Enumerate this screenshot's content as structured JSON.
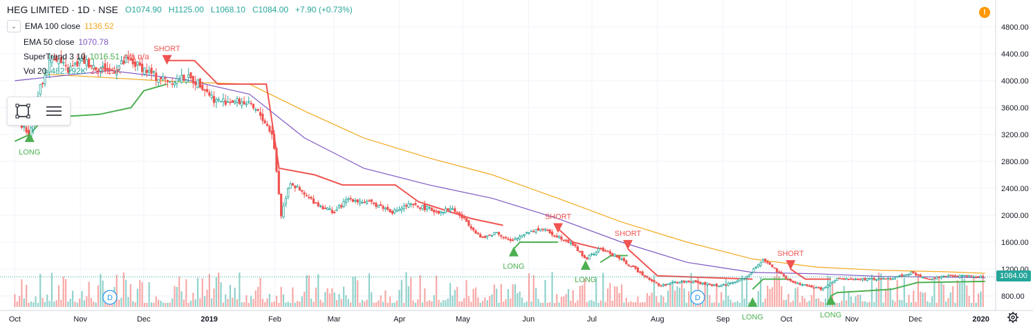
{
  "header": {
    "symbol": "HEG LIMITED · 1D · NSE",
    "open": "O1074.90",
    "high": "H1125.00",
    "low": "L1068.10",
    "close": "C1084.00",
    "change": "+7.90 (+0.73%)"
  },
  "indicators": [
    {
      "name": "EMA 100 close",
      "value": "1136.52",
      "color": "#f2a81d"
    },
    {
      "name": "EMA 50 close",
      "value": "1070.78",
      "color": "#7e57c2"
    },
    {
      "name": "SuperTrend 3 10",
      "value": "1016.51",
      "extra": "n/a n/a",
      "color": "#4caf50"
    },
    {
      "name": "Vol 20",
      "value": "482.192K",
      "value2": "297.25K",
      "color": "#26a69a",
      "color2": "#ef5350"
    }
  ],
  "alert_icon": "!",
  "last_price_label": "1084.00",
  "icons": {
    "collapse": "chevron-down-icon",
    "shape": "rectangle-tool-icon",
    "menu": "lines-menu-icon",
    "settings": "gear-icon",
    "dividend": "dividend-marker-icon"
  },
  "colors": {
    "up": "#26a69a",
    "down": "#ef5350",
    "ema100": "#f2a81d",
    "ema50": "#7e57c2",
    "st_up": "#4caf50",
    "st_down": "#f05350"
  },
  "chart_data": {
    "type": "candlestick",
    "y_axis": {
      "ticks": [
        "800.00",
        "1200.00",
        "1600.00",
        "2000.00",
        "2400.00",
        "2800.00",
        "3200.00",
        "3600.00",
        "4000.00",
        "4400.00",
        "4800.00"
      ],
      "ylim": [
        600,
        5000
      ]
    },
    "x_axis": {
      "ticks": [
        "Oct",
        "Nov",
        "Dec",
        "2019",
        "Feb",
        "Mar",
        "Apr",
        "May",
        "Jun",
        "Jul",
        "Aug",
        "Sep",
        "Oct",
        "Nov",
        "Dec",
        "2020"
      ]
    },
    "close_path": [
      [
        "2018-10-01",
        3500
      ],
      [
        "2018-10-08",
        3150
      ],
      [
        "2018-10-12",
        3800
      ],
      [
        "2018-10-19",
        4400
      ],
      [
        "2018-10-26",
        4150
      ],
      [
        "2018-11-02",
        4300
      ],
      [
        "2018-11-09",
        4200
      ],
      [
        "2018-11-16",
        4150
      ],
      [
        "2018-11-23",
        4300
      ],
      [
        "2018-11-30",
        4200
      ],
      [
        "2018-12-07",
        4050
      ],
      [
        "2018-12-14",
        4000
      ],
      [
        "2018-12-21",
        4050
      ],
      [
        "2018-12-28",
        3950
      ],
      [
        "2019-01-04",
        3700
      ],
      [
        "2019-01-11",
        3700
      ],
      [
        "2019-01-18",
        3680
      ],
      [
        "2019-01-25",
        3500
      ],
      [
        "2019-01-31",
        3200
      ],
      [
        "2019-02-04",
        2000
      ],
      [
        "2019-02-08",
        2500
      ],
      [
        "2019-02-15",
        2300
      ],
      [
        "2019-02-22",
        2150
      ],
      [
        "2019-03-01",
        2050
      ],
      [
        "2019-03-08",
        2250
      ],
      [
        "2019-03-15",
        2200
      ],
      [
        "2019-03-22",
        2150
      ],
      [
        "2019-03-29",
        2050
      ],
      [
        "2019-04-05",
        2150
      ],
      [
        "2019-04-12",
        2120
      ],
      [
        "2019-04-19",
        2050
      ],
      [
        "2019-04-26",
        2100
      ],
      [
        "2019-05-03",
        1900
      ],
      [
        "2019-05-10",
        1650
      ],
      [
        "2019-05-17",
        1750
      ],
      [
        "2019-05-24",
        1600
      ],
      [
        "2019-05-31",
        1750
      ],
      [
        "2019-06-07",
        1800
      ],
      [
        "2019-06-14",
        1700
      ],
      [
        "2019-06-21",
        1600
      ],
      [
        "2019-06-28",
        1350
      ],
      [
        "2019-07-05",
        1500
      ],
      [
        "2019-07-12",
        1400
      ],
      [
        "2019-07-19",
        1250
      ],
      [
        "2019-07-26",
        1100
      ],
      [
        "2019-08-02",
        950
      ],
      [
        "2019-08-09",
        1000
      ],
      [
        "2019-08-16",
        1020
      ],
      [
        "2019-08-23",
        980
      ],
      [
        "2019-08-30",
        950
      ],
      [
        "2019-09-06",
        1000
      ],
      [
        "2019-09-13",
        1100
      ],
      [
        "2019-09-20",
        1350
      ],
      [
        "2019-09-27",
        1150
      ],
      [
        "2019-10-04",
        1000
      ],
      [
        "2019-10-11",
        950
      ],
      [
        "2019-10-18",
        900
      ],
      [
        "2019-10-25",
        1050
      ],
      [
        "2019-11-01",
        1050
      ],
      [
        "2019-11-08",
        1050
      ],
      [
        "2019-11-15",
        1050
      ],
      [
        "2019-11-22",
        1080
      ],
      [
        "2019-11-29",
        1150
      ],
      [
        "2019-12-06",
        1050
      ],
      [
        "2019-12-13",
        1080
      ],
      [
        "2019-12-20",
        1100
      ],
      [
        "2019-12-27",
        1100
      ],
      [
        "2020-01-03",
        1084
      ]
    ],
    "ema50": [
      [
        "2018-10-01",
        4000
      ],
      [
        "2018-11-15",
        4150
      ],
      [
        "2018-12-20",
        4020
      ],
      [
        "2019-01-20",
        3800
      ],
      [
        "2019-02-15",
        3150
      ],
      [
        "2019-03-15",
        2700
      ],
      [
        "2019-04-15",
        2450
      ],
      [
        "2019-05-15",
        2250
      ],
      [
        "2019-06-15",
        1950
      ],
      [
        "2019-07-15",
        1600
      ],
      [
        "2019-08-15",
        1300
      ],
      [
        "2019-09-15",
        1150
      ],
      [
        "2019-10-15",
        1130
      ],
      [
        "2019-11-15",
        1090
      ],
      [
        "2019-12-15",
        1080
      ],
      [
        "2020-01-03",
        1071
      ]
    ],
    "ema100": [
      [
        "2018-10-15",
        4100
      ],
      [
        "2018-12-20",
        3980
      ],
      [
        "2019-01-20",
        3950
      ],
      [
        "2019-02-15",
        3550
      ],
      [
        "2019-03-15",
        3150
      ],
      [
        "2019-04-15",
        2850
      ],
      [
        "2019-05-15",
        2600
      ],
      [
        "2019-06-15",
        2250
      ],
      [
        "2019-07-15",
        1900
      ],
      [
        "2019-08-15",
        1600
      ],
      [
        "2019-09-15",
        1350
      ],
      [
        "2019-10-15",
        1230
      ],
      [
        "2019-11-15",
        1180
      ],
      [
        "2019-12-15",
        1160
      ],
      [
        "2020-01-03",
        1137
      ]
    ],
    "supertrend": [
      {
        "dir": "up",
        "points": [
          [
            "2018-10-01",
            3100
          ],
          [
            "2018-10-08",
            3200
          ],
          [
            "2018-10-15",
            3450
          ],
          [
            "2018-11-10",
            3500
          ],
          [
            "2018-11-25",
            3600
          ],
          [
            "2018-12-01",
            3850
          ],
          [
            "2018-12-12",
            3950
          ]
        ]
      },
      {
        "dir": "down",
        "points": [
          [
            "2018-12-12",
            4300
          ],
          [
            "2018-12-25",
            4300
          ],
          [
            "2019-01-05",
            3950
          ],
          [
            "2019-01-28",
            3950
          ],
          [
            "2019-02-03",
            2700
          ],
          [
            "2019-02-20",
            2600
          ],
          [
            "2019-03-05",
            2450
          ],
          [
            "2019-03-30",
            2450
          ],
          [
            "2019-04-10",
            2200
          ],
          [
            "2019-05-05",
            1950
          ],
          [
            "2019-05-20",
            1850
          ]
        ]
      },
      {
        "dir": "up",
        "points": [
          [
            "2019-05-25",
            1500
          ],
          [
            "2019-05-28",
            1600
          ],
          [
            "2019-06-15",
            1600
          ]
        ]
      },
      {
        "dir": "down",
        "points": [
          [
            "2019-06-15",
            1800
          ],
          [
            "2019-06-22",
            1600
          ],
          [
            "2019-07-05",
            1500
          ]
        ]
      },
      {
        "dir": "up",
        "points": [
          [
            "2019-07-05",
            1300
          ],
          [
            "2019-07-10",
            1400
          ],
          [
            "2019-07-18",
            1400
          ]
        ]
      },
      {
        "dir": "down",
        "points": [
          [
            "2019-07-18",
            1500
          ],
          [
            "2019-08-01",
            1100
          ],
          [
            "2019-09-15",
            1050
          ]
        ]
      },
      {
        "dir": "up",
        "points": [
          [
            "2019-09-15",
            900
          ],
          [
            "2019-09-20",
            1050
          ],
          [
            "2019-10-03",
            1050
          ]
        ]
      },
      {
        "dir": "down",
        "points": [
          [
            "2019-10-03",
            1200
          ],
          [
            "2019-10-10",
            1050
          ],
          [
            "2019-10-22",
            1050
          ]
        ]
      },
      {
        "dir": "up",
        "points": [
          [
            "2019-10-22",
            800
          ],
          [
            "2019-10-25",
            850
          ],
          [
            "2019-11-20",
            900
          ],
          [
            "2019-12-02",
            1000
          ],
          [
            "2020-01-03",
            1016
          ]
        ]
      }
    ],
    "signals": [
      {
        "type": "LONG",
        "date": "2018-10-08",
        "price": 3150
      },
      {
        "type": "SHORT",
        "date": "2018-12-12",
        "price": 4300
      },
      {
        "type": "SHORT",
        "date": "2019-06-15",
        "price": 1800
      },
      {
        "type": "LONG",
        "date": "2019-05-25",
        "price": 1450
      },
      {
        "type": "LONG",
        "date": "2019-06-28",
        "price": 1250
      },
      {
        "type": "SHORT",
        "date": "2019-07-18",
        "price": 1550
      },
      {
        "type": "SHORT",
        "date": "2019-10-03",
        "price": 1250
      },
      {
        "type": "LONG",
        "date": "2019-09-15",
        "price": 700
      },
      {
        "type": "LONG",
        "date": "2019-10-22",
        "price": 730
      }
    ],
    "dividends": [
      {
        "date": "2018-11-15",
        "label": "D"
      },
      {
        "date": "2019-08-20",
        "label": "D"
      }
    ],
    "last_price": 1084.0
  }
}
